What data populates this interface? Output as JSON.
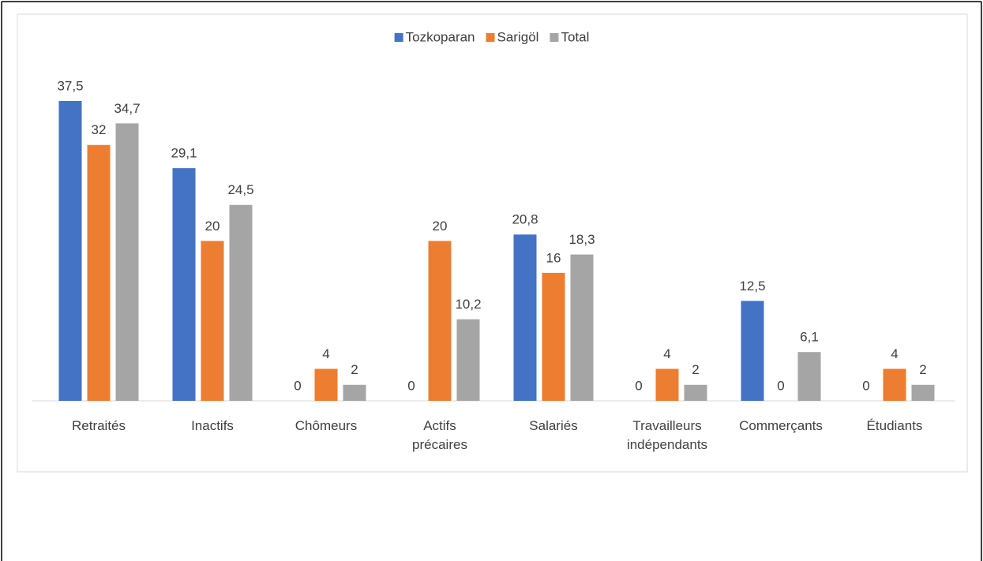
{
  "chart_data": {
    "type": "bar",
    "categories": [
      "Retraités",
      "Inactifs",
      "Chômeurs",
      "Actifs précaires",
      "Salariés",
      "Travailleurs indépendants",
      "Commerçants",
      "Étudiants"
    ],
    "series": [
      {
        "name": "Tozkoparan",
        "color": "#4472c4",
        "values": [
          37.5,
          29.1,
          0,
          0,
          20.8,
          0,
          12.5,
          0
        ],
        "value_labels": [
          "37,5",
          "29,1",
          "0",
          "0",
          "20,8",
          "0",
          "12,5",
          "0"
        ]
      },
      {
        "name": "Sarigöl",
        "color": "#ed7d31",
        "values": [
          32,
          20,
          4,
          20,
          16,
          4,
          0,
          4
        ],
        "value_labels": [
          "32",
          "20",
          "4",
          "20",
          "16",
          "4",
          "0",
          "4"
        ]
      },
      {
        "name": "Total",
        "color": "#a5a5a5",
        "values": [
          34.7,
          24.5,
          2,
          10.2,
          18.3,
          2,
          6.1,
          2
        ],
        "value_labels": [
          "34,7",
          "24,5",
          "2",
          "10,2",
          "18,3",
          "2",
          "6,1",
          "2"
        ]
      }
    ],
    "ylim": [
      0,
      40
    ],
    "legend": "top"
  }
}
